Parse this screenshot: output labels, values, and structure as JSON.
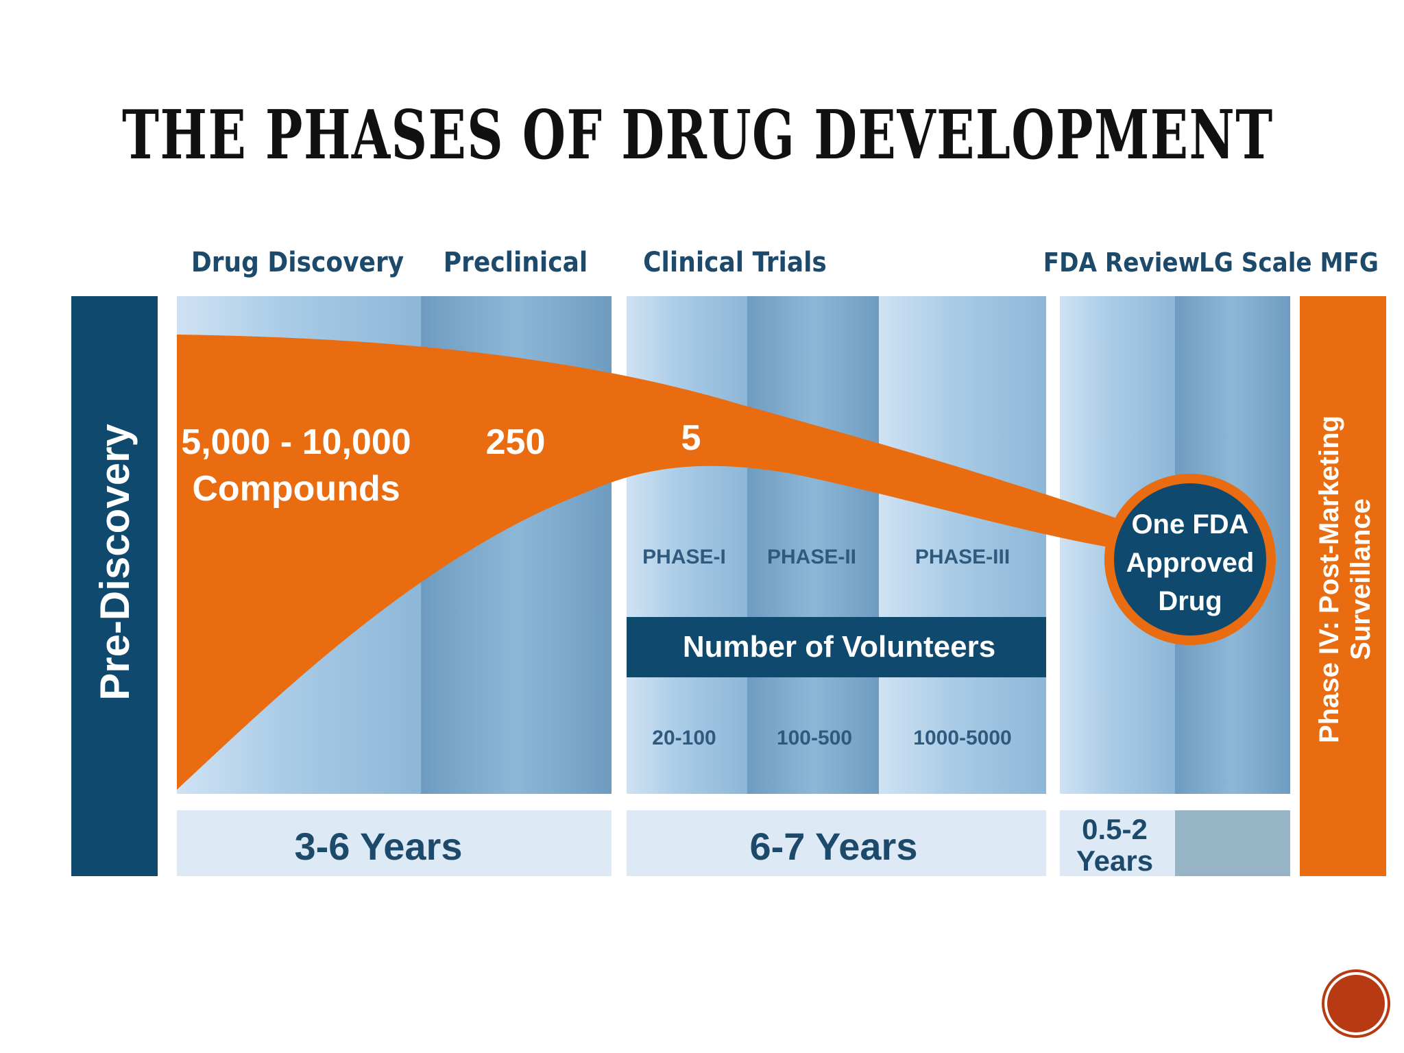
{
  "title": "THE PHASES OF DRUG DEVELOPMENT",
  "stages": {
    "drug_discovery": "Drug Discovery",
    "preclinical": "Preclinical",
    "clinical_trials": "Clinical Trials",
    "fda_review": "FDA Review",
    "lg_scale_mfg": "LG Scale MFG"
  },
  "pre_discovery": "Pre-Discovery",
  "post_marketing": {
    "line1": "Phase IV: Post-Marketing",
    "line2": "Surveillance"
  },
  "compounds": {
    "range": "5,000 - 10,000",
    "unit": "Compounds",
    "preclinical_count": "250",
    "clinical_count": "5"
  },
  "approved_drug": {
    "line1": "One FDA",
    "line2": "Approved",
    "line3": "Drug"
  },
  "trial_phases": [
    "PHASE-I",
    "PHASE-II",
    "PHASE-III"
  ],
  "volunteers_label": "Number of Volunteers",
  "volunteer_counts": [
    "20-100",
    "100-500",
    "1000-5000"
  ],
  "durations": {
    "discovery_preclinical": "3-6 Years",
    "clinical": "6-7 Years",
    "fda_line1": "0.5-2",
    "fda_line2": "Years"
  },
  "colors": {
    "navy": "#0f4a6e",
    "orange": "#e96c10",
    "light_blue": "#a9cbe6",
    "mid_blue": "#86b0d0",
    "pale_blue": "#ddeaf6"
  }
}
